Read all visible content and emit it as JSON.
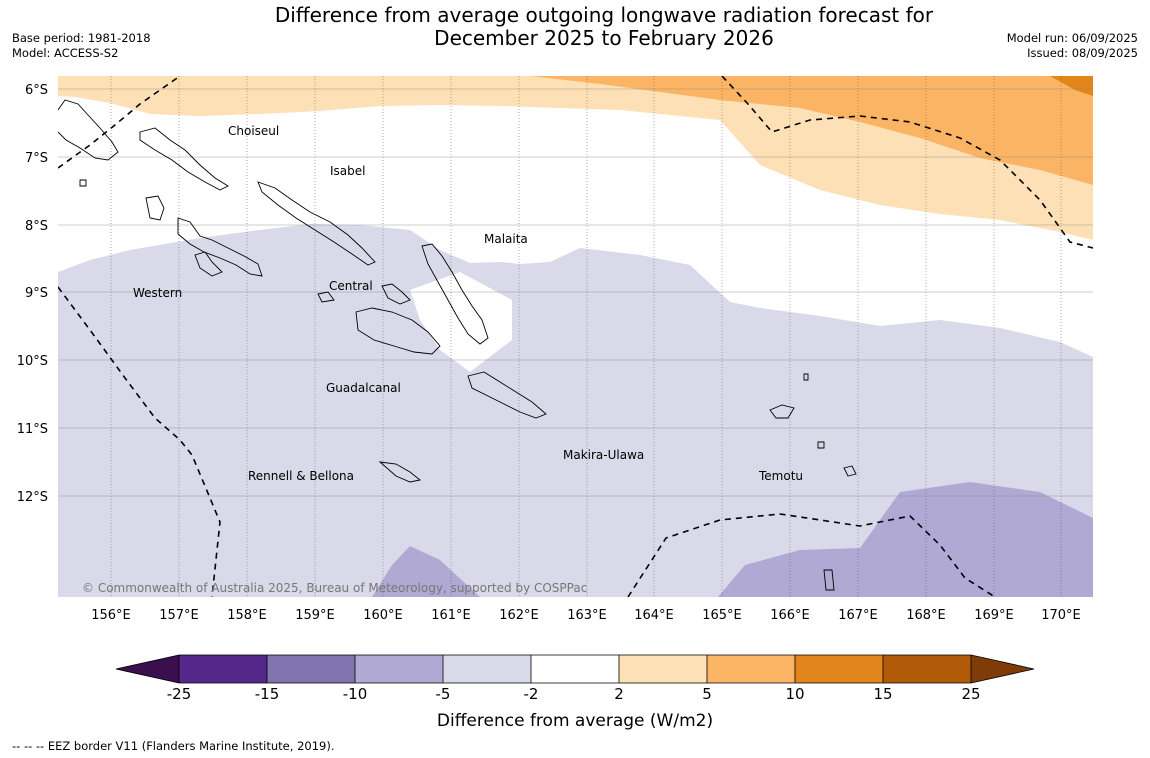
{
  "title": {
    "line1": "Difference from average outgoing longwave radiation forecast for",
    "line2": "December 2025 to February 2026"
  },
  "meta_left": {
    "base_period": "Base period: 1981-2018",
    "model": "Model: ACCESS-S2"
  },
  "meta_right": {
    "model_run": "Model run: 06/09/2025",
    "issued": "Issued: 08/09/2025"
  },
  "map": {
    "lat_labels": [
      "6°S",
      "7°S",
      "8°S",
      "9°S",
      "10°S",
      "11°S",
      "12°S"
    ],
    "lon_labels": [
      "156°E",
      "157°E",
      "158°E",
      "159°E",
      "160°E",
      "161°E",
      "162°E",
      "163°E",
      "164°E",
      "165°E",
      "166°E",
      "167°E",
      "168°E",
      "169°E",
      "170°E"
    ],
    "place_labels": {
      "choiseul": "Choiseul",
      "isabel": "Isabel",
      "malaita": "Malaita",
      "western": "Western",
      "central": "Central",
      "guadalcanal": "Guadalcanal",
      "makira_ulawa": "Makira-Ulawa",
      "rennell_bellona": "Rennell & Bellona",
      "temotu": "Temotu"
    },
    "copyright": "© Commonwealth of Australia 2025, Bureau of Meteorology, supported by COSPPac",
    "colors": {
      "below_minus_25": "#3b0f4d",
      "m25_m15": "#54288a",
      "m15_m10": "#8073ae",
      "m10_m5": "#b0a9d3",
      "m5_m2": "#d9d9ea",
      "m2_2": "#ffffff",
      "p2_5": "#fde0b5",
      "p5_10": "#fbb463",
      "p10_15": "#e2851a",
      "p15_25": "#b15a07",
      "above_25": "#7f3b08"
    }
  },
  "colorbar": {
    "ticks": [
      "-25",
      "-15",
      "-10",
      "-5",
      "-2",
      "2",
      "5",
      "10",
      "15",
      "25"
    ],
    "label": "Difference from average (W/m2)"
  },
  "footer": {
    "eez_note": "--  --  -- EEZ border V11 (Flanders Marine Institute, 2019)."
  }
}
